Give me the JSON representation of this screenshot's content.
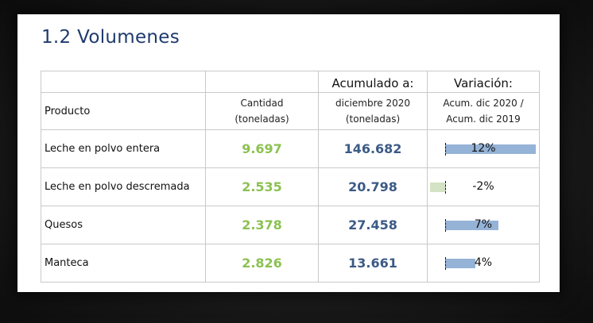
{
  "title": "1.2  Volumenes",
  "table": {
    "header": {
      "producto": "Producto",
      "cantidad_line1": "Cantidad",
      "cantidad_line2": "(toneladas)",
      "acumulado_title": "Acumulado a:",
      "acumulado_line1": "diciembre 2020",
      "acumulado_line2": "(toneladas)",
      "variacion_title": "Variación:",
      "variacion_line1": "Acum. dic 2020 /",
      "variacion_line2": "Acum. dic 2019"
    },
    "rows": [
      {
        "producto": "Leche en polvo entera",
        "cantidad": "9.697",
        "acumulado": "146.682",
        "variacion": "12%",
        "variacion_value": 12
      },
      {
        "producto": "Leche en polvo descremada",
        "cantidad": "2.535",
        "acumulado": "20.798",
        "variacion": "-2%",
        "variacion_value": -2
      },
      {
        "producto": "Quesos",
        "cantidad": "2.378",
        "acumulado": "27.458",
        "variacion": "7%",
        "variacion_value": 7
      },
      {
        "producto": "Manteca",
        "cantidad": "2.826",
        "acumulado": "13.661",
        "variacion": "4%",
        "variacion_value": 4
      }
    ]
  },
  "colors": {
    "title": "#1f3a6e",
    "cantidad": "#8cc152",
    "acumulado": "#3c5a86",
    "bar_positive": "#95b3d7",
    "bar_negative": "#d3e3c3"
  }
}
